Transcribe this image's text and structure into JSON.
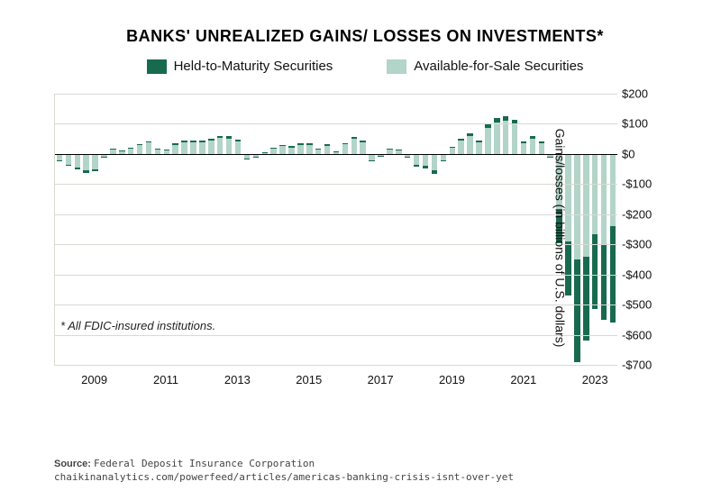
{
  "chart": {
    "type": "stacked-bar",
    "title": "BANKS' UNREALIZED GAINS/ LOSSES ON INVESTMENTS*",
    "legend": {
      "htm": {
        "label": "Held-to-Maturity Securities",
        "color": "#186a4f"
      },
      "afs": {
        "label": "Available-for-Sale Securities",
        "color": "#b2d4c9"
      }
    },
    "y_axis": {
      "title": "Gains/losses (in billions of U.S. dollars)",
      "min": -700,
      "max": 200,
      "tick_step": 100,
      "tick_prefix": "",
      "ticks": [
        200,
        100,
        0,
        -100,
        -200,
        -300,
        -400,
        -500,
        -600,
        -700
      ],
      "tick_labels": [
        "$200",
        "$100",
        "$0",
        "-$100",
        "-$200",
        "-$300",
        "-$400",
        "-$500",
        "-$600",
        "-$700"
      ]
    },
    "x_axis": {
      "tick_years": [
        2009,
        2011,
        2013,
        2015,
        2017,
        2019,
        2021,
        2023
      ]
    },
    "colors": {
      "background": "#ffffff",
      "grid": "#d8dad2",
      "axis_zero": "#000000",
      "text": "#111111",
      "htm": "#186a4f",
      "afs": "#b2d4c9"
    },
    "title_fontsize": 18,
    "label_fontsize": 13,
    "bar_gap_ratio": 0.35,
    "series": [
      {
        "period": "2008Q1",
        "htm": -3,
        "afs": -20
      },
      {
        "period": "2008Q2",
        "htm": -5,
        "afs": -35
      },
      {
        "period": "2008Q3",
        "htm": -6,
        "afs": -45
      },
      {
        "period": "2008Q4",
        "htm": -8,
        "afs": -55
      },
      {
        "period": "2009Q1",
        "htm": -7,
        "afs": -50
      },
      {
        "period": "2009Q2",
        "htm": -2,
        "afs": -10
      },
      {
        "period": "2009Q3",
        "htm": 2,
        "afs": 15
      },
      {
        "period": "2009Q4",
        "htm": 2,
        "afs": 10
      },
      {
        "period": "2010Q1",
        "htm": 3,
        "afs": 18
      },
      {
        "period": "2010Q2",
        "htm": 4,
        "afs": 30
      },
      {
        "period": "2010Q3",
        "htm": 5,
        "afs": 38
      },
      {
        "period": "2010Q4",
        "htm": 3,
        "afs": 15
      },
      {
        "period": "2011Q1",
        "htm": 3,
        "afs": 12
      },
      {
        "period": "2011Q2",
        "htm": 5,
        "afs": 30
      },
      {
        "period": "2011Q3",
        "htm": 6,
        "afs": 38
      },
      {
        "period": "2011Q4",
        "htm": 6,
        "afs": 40
      },
      {
        "period": "2012Q1",
        "htm": 6,
        "afs": 38
      },
      {
        "period": "2012Q2",
        "htm": 7,
        "afs": 44
      },
      {
        "period": "2012Q3",
        "htm": 8,
        "afs": 52
      },
      {
        "period": "2012Q4",
        "htm": 8,
        "afs": 50
      },
      {
        "period": "2013Q1",
        "htm": 7,
        "afs": 42
      },
      {
        "period": "2013Q2",
        "htm": -3,
        "afs": -15
      },
      {
        "period": "2013Q3",
        "htm": -3,
        "afs": -10
      },
      {
        "period": "2013Q4",
        "htm": 1,
        "afs": 5
      },
      {
        "period": "2014Q1",
        "htm": 3,
        "afs": 18
      },
      {
        "period": "2014Q2",
        "htm": 4,
        "afs": 26
      },
      {
        "period": "2014Q3",
        "htm": 4,
        "afs": 22
      },
      {
        "period": "2014Q4",
        "htm": 5,
        "afs": 30
      },
      {
        "period": "2015Q1",
        "htm": 5,
        "afs": 30
      },
      {
        "period": "2015Q2",
        "htm": 3,
        "afs": 15
      },
      {
        "period": "2015Q3",
        "htm": 5,
        "afs": 28
      },
      {
        "period": "2015Q4",
        "htm": 2,
        "afs": 8
      },
      {
        "period": "2016Q1",
        "htm": 5,
        "afs": 32
      },
      {
        "period": "2016Q2",
        "htm": 7,
        "afs": 50
      },
      {
        "period": "2016Q3",
        "htm": 6,
        "afs": 40
      },
      {
        "period": "2016Q4",
        "htm": -4,
        "afs": -20
      },
      {
        "period": "2017Q1",
        "htm": -1,
        "afs": -5
      },
      {
        "period": "2017Q2",
        "htm": 3,
        "afs": 15
      },
      {
        "period": "2017Q3",
        "htm": 3,
        "afs": 12
      },
      {
        "period": "2017Q4",
        "htm": -2,
        "afs": -8
      },
      {
        "period": "2018Q1",
        "htm": -6,
        "afs": -35
      },
      {
        "period": "2018Q2",
        "htm": -7,
        "afs": -40
      },
      {
        "period": "2018Q3",
        "htm": -10,
        "afs": -55
      },
      {
        "period": "2018Q4",
        "htm": -5,
        "afs": -20
      },
      {
        "period": "2019Q1",
        "htm": 3,
        "afs": 20
      },
      {
        "period": "2019Q2",
        "htm": 6,
        "afs": 45
      },
      {
        "period": "2019Q3",
        "htm": 8,
        "afs": 60
      },
      {
        "period": "2019Q4",
        "htm": 6,
        "afs": 40
      },
      {
        "period": "2020Q1",
        "htm": 12,
        "afs": 85
      },
      {
        "period": "2020Q2",
        "htm": 15,
        "afs": 105
      },
      {
        "period": "2020Q3",
        "htm": 15,
        "afs": 110
      },
      {
        "period": "2020Q4",
        "htm": 13,
        "afs": 100
      },
      {
        "period": "2021Q1",
        "htm": 6,
        "afs": 35
      },
      {
        "period": "2021Q2",
        "htm": 8,
        "afs": 50
      },
      {
        "period": "2021Q3",
        "htm": 6,
        "afs": 35
      },
      {
        "period": "2021Q4",
        "htm": -3,
        "afs": -8
      },
      {
        "period": "2022Q1",
        "htm": -110,
        "afs": -185
      },
      {
        "period": "2022Q2",
        "htm": -180,
        "afs": -290
      },
      {
        "period": "2022Q3",
        "htm": -340,
        "afs": -350
      },
      {
        "period": "2022Q4",
        "htm": -280,
        "afs": -340
      },
      {
        "period": "2023Q1",
        "htm": -250,
        "afs": -265
      },
      {
        "period": "2023Q2",
        "htm": -250,
        "afs": -300
      },
      {
        "period": "2023Q3",
        "htm": -320,
        "afs": -240
      }
    ],
    "footnote": "* All FDIC-insured institutions."
  },
  "source": {
    "label": "Source:",
    "line1": "Federal Deposit Insurance Corporation",
    "line2": "chaikinanalytics.com/powerfeed/articles/americas-banking-crisis-isnt-over-yet"
  }
}
